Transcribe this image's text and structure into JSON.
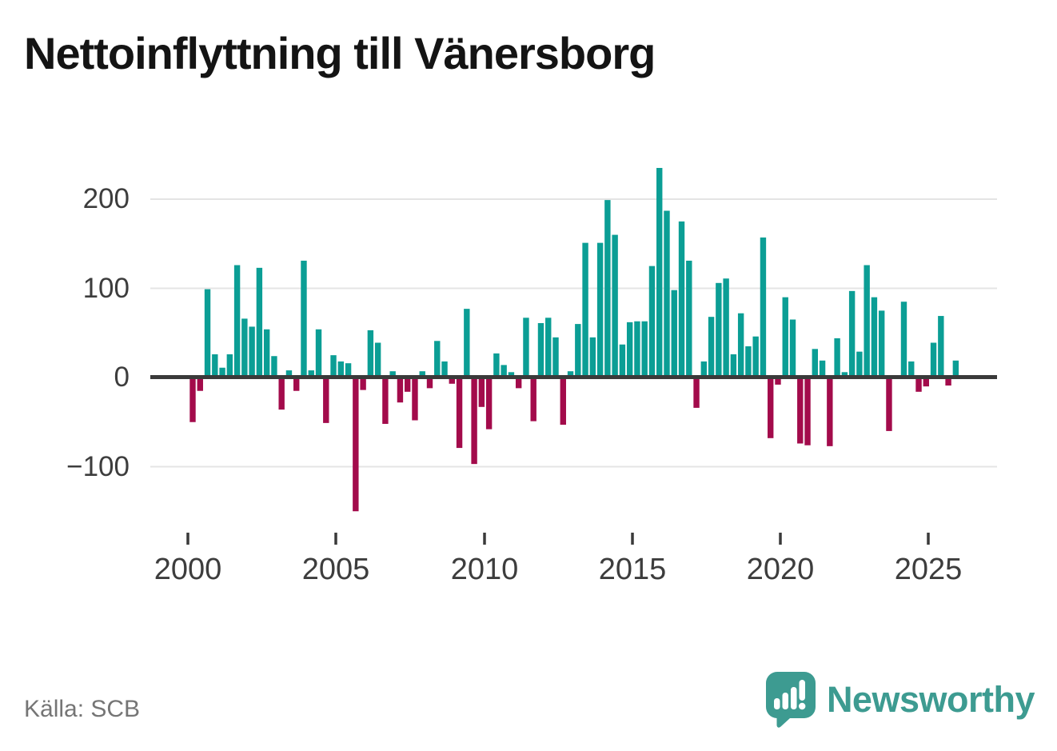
{
  "title": "Nettoinflyttning till Vänersborg",
  "source": "Källa: SCB",
  "brand": {
    "name": "Newsworthy",
    "color": "#3d9b91"
  },
  "y_axis": {
    "labels": [
      "200",
      "100",
      "0",
      "−100"
    ]
  },
  "x_axis": {
    "labels": [
      "2000",
      "2005",
      "2010",
      "2015",
      "2020",
      "2025"
    ]
  },
  "chart_data": {
    "type": "bar",
    "title": "Nettoinflyttning till Vänersborg",
    "xlabel": "",
    "ylabel": "",
    "frequency": "quarterly",
    "x_start": "2000 Q1",
    "x_end": "2025 Q4",
    "x_tick_labels": [
      "2000",
      "2005",
      "2010",
      "2015",
      "2020",
      "2025"
    ],
    "y_ticks": [
      200,
      100,
      0,
      -100
    ],
    "ylim": [
      -165,
      250
    ],
    "grid": true,
    "legend": false,
    "positive_color": "#0b9e95",
    "negative_color": "#a30b4b",
    "values": [
      -50,
      -15,
      99,
      26,
      11,
      26,
      126,
      66,
      57,
      123,
      54,
      24,
      -36,
      8,
      -15,
      131,
      8,
      54,
      -51,
      25,
      18,
      16,
      -150,
      -14,
      53,
      39,
      -52,
      7,
      -28,
      -16,
      -48,
      7,
      -12,
      41,
      18,
      -7,
      -79,
      77,
      -97,
      -33,
      -58,
      27,
      14,
      6,
      -12,
      67,
      -49,
      61,
      67,
      45,
      -53,
      7,
      60,
      151,
      45,
      151,
      199,
      160,
      37,
      62,
      63,
      63,
      125,
      235,
      187,
      98,
      175,
      131,
      -34,
      18,
      68,
      106,
      111,
      26,
      72,
      35,
      46,
      157,
      -68,
      -8,
      90,
      65,
      -74,
      -76,
      32,
      19,
      -77,
      44,
      6,
      97,
      29,
      126,
      90,
      75,
      -60,
      0,
      85,
      18,
      -16,
      -10,
      39,
      69,
      -9,
      19
    ]
  }
}
